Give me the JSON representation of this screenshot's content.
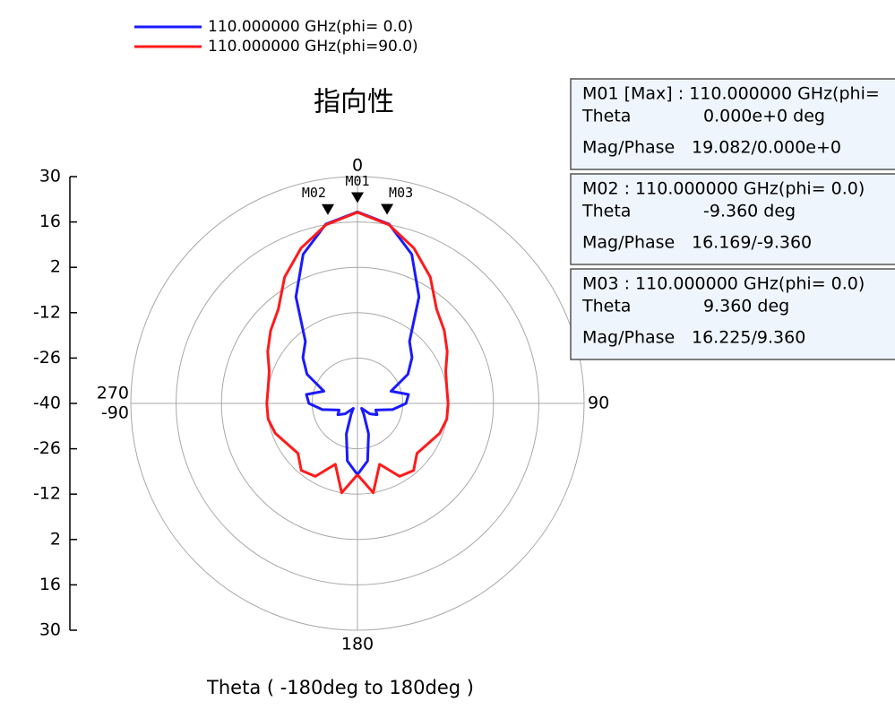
{
  "chart_data": {
    "type": "polar",
    "title": "指向性",
    "axis_label": "Theta ( -180deg to 180deg )",
    "theta": [
      -180,
      -170,
      -160,
      -150,
      -140,
      -130,
      -120,
      -110,
      -100,
      -90,
      -80,
      -70,
      -60,
      -50,
      -40,
      -30,
      -20,
      -10,
      0,
      10,
      20,
      30,
      40,
      50,
      60,
      70,
      80,
      90,
      100,
      110,
      120,
      130,
      140,
      150,
      160,
      170,
      180
    ],
    "series": [
      {
        "name": "110.000000 GHz(phi= 0.0)",
        "color": "#1a1aff",
        "values": [
          -18,
          -22,
          -30,
          -36,
          -38,
          -35,
          -33,
          -34,
          -29,
          -25,
          -24,
          -29,
          -22,
          -18,
          -15,
          -2,
          9,
          16.2,
          19.1,
          16.2,
          9,
          -2,
          -15,
          -18,
          -22,
          -29,
          -24,
          -25,
          -29,
          -34,
          -33,
          -35,
          -38,
          -36,
          -30,
          -22,
          -18
        ]
      },
      {
        "name": "110.000000 GHz(phi=90.0)",
        "color": "#ff1a1a",
        "values": [
          -18,
          -12,
          -20,
          -14,
          -13,
          -16,
          -15,
          -13,
          -12,
          -12,
          -12,
          -11,
          -8,
          -5,
          -2,
          5,
          11,
          16,
          19,
          16,
          11,
          5,
          -2,
          -5,
          -8,
          -11,
          -12,
          -12,
          -12,
          -13,
          -15,
          -16,
          -13,
          -14,
          -20,
          -12,
          -18
        ]
      }
    ],
    "rlim": [
      -40,
      30
    ],
    "rticks": [
      -40,
      -26,
      -12,
      2,
      16,
      30
    ],
    "thetaticks": [
      {
        "value": 0,
        "label": "0"
      },
      {
        "value": 90,
        "label": "90"
      },
      {
        "value": 180,
        "label": "180"
      },
      {
        "value": 270,
        "label": "270"
      },
      {
        "value": -90,
        "label": "-90"
      }
    ],
    "markers": [
      {
        "name": "M01",
        "theta": 0,
        "value": 19.082,
        "header": "M01 [Max] : 110.000000 GHz(phi=",
        "theta_label": "Theta",
        "theta_text": "0.000e+0  deg",
        "mag_label": "Mag/Phase",
        "mag_text": "19.082/0.000e+0"
      },
      {
        "name": "M02",
        "theta": -9.36,
        "value": 16.169,
        "header": "M02 : 110.000000 GHz(phi= 0.0)",
        "theta_label": "Theta",
        "theta_text": "-9.360  deg",
        "mag_label": "Mag/Phase",
        "mag_text": "16.169/-9.360"
      },
      {
        "name": "M03",
        "theta": 9.36,
        "value": 16.225,
        "header": "M03 : 110.000000 GHz(phi= 0.0)",
        "theta_label": "Theta",
        "theta_text": "9.360  deg",
        "mag_label": "Mag/Phase",
        "mag_text": "16.225/9.360"
      }
    ]
  }
}
